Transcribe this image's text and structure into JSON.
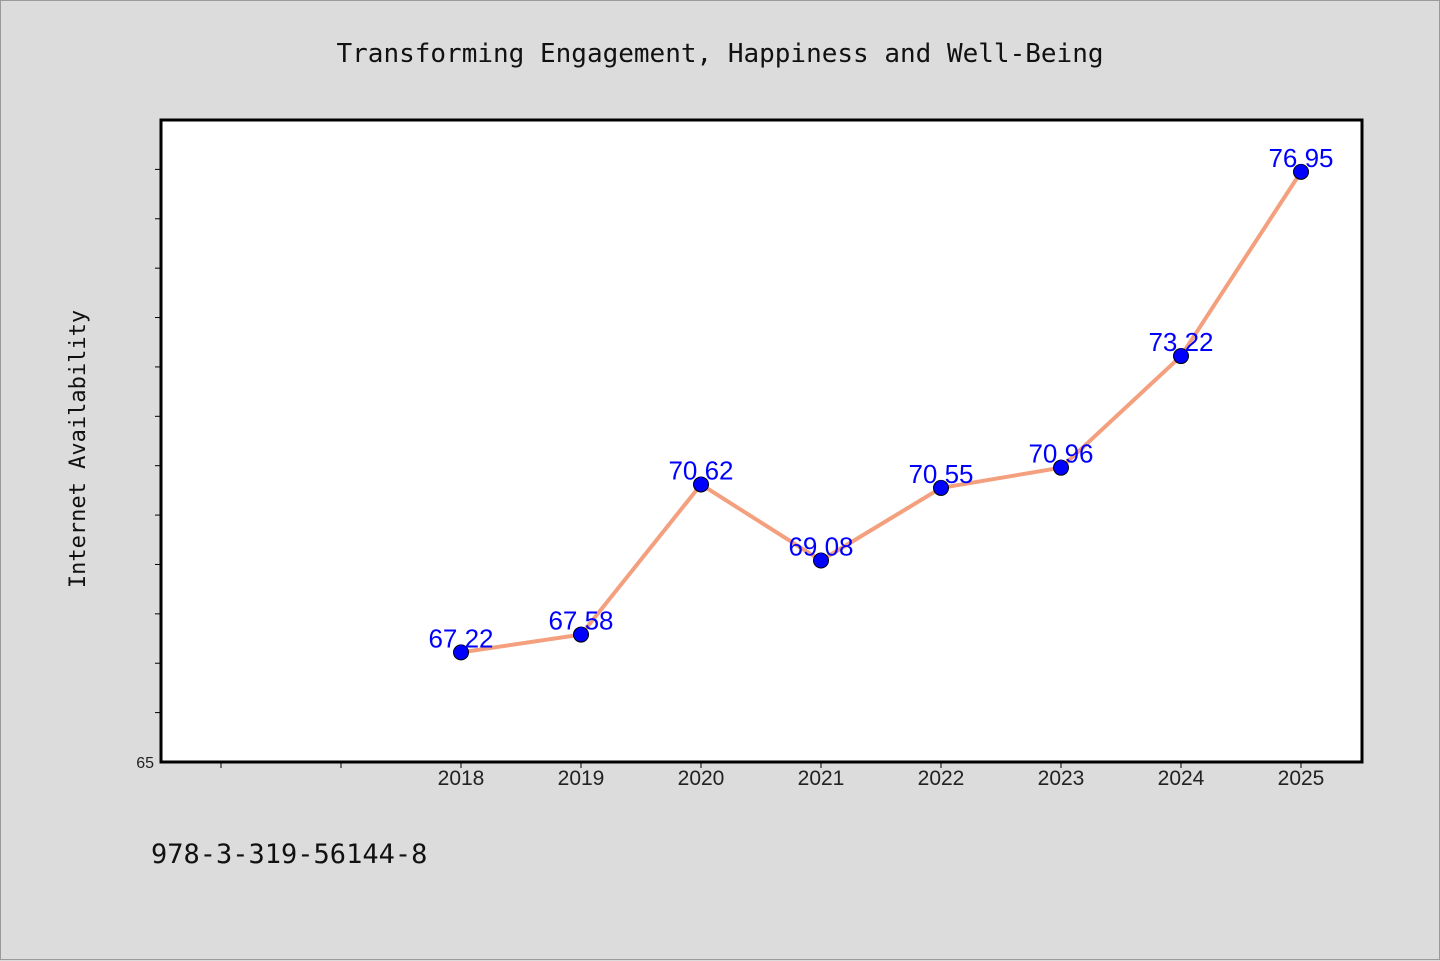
{
  "chart_data": {
    "type": "line",
    "title": "Transforming Engagement, Happiness and Well-Being",
    "xlabel": "",
    "ylabel": "Internet Availability",
    "x": [
      "2018",
      "2019",
      "2020",
      "2021",
      "2022",
      "2023",
      "2024",
      "2025"
    ],
    "values": [
      67.22,
      67.58,
      70.62,
      69.08,
      70.55,
      70.96,
      73.22,
      76.95
    ],
    "value_labels": [
      "67.22",
      "67.58",
      "70.62",
      "69.08",
      "70.55",
      "70.96",
      "73.22",
      "76.95"
    ],
    "y_tick_labels": [
      "65"
    ],
    "ylim": [
      65,
      78
    ],
    "grid": false,
    "line_color": "#f4a07e",
    "marker_color": "#0000ff",
    "label_color": "#0000ff",
    "plot_background": "#ffffff",
    "page_background": "#dcdcdc"
  },
  "footer": {
    "text": "978-3-319-56144-8"
  }
}
